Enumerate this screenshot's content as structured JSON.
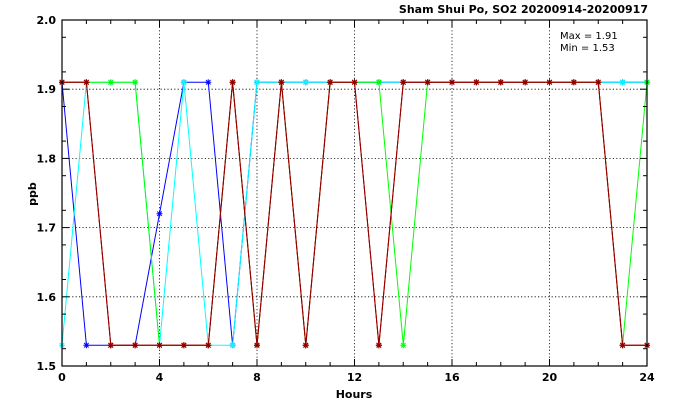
{
  "chart_data": {
    "type": "line",
    "title": "Sham Shui Po, SO2 20200914-20200917",
    "xlabel": "Hours",
    "ylabel": "ppb",
    "xlim": [
      0,
      24
    ],
    "ylim": [
      1.5,
      2.0
    ],
    "x_ticks": [
      "0",
      "4",
      "8",
      "12",
      "16",
      "20",
      "24"
    ],
    "y_ticks": [
      "1.5",
      "1.6",
      "1.7",
      "1.8",
      "1.9",
      "2.0"
    ],
    "grid": true,
    "stats": {
      "max_label": "Max = 1.91",
      "min_label": "Min = 1.53"
    },
    "x": [
      0,
      1,
      2,
      3,
      4,
      5,
      6,
      7,
      8,
      9,
      10,
      11,
      12,
      13,
      14,
      15,
      16,
      17,
      18,
      19,
      20,
      21,
      22,
      23,
      24
    ],
    "series": [
      {
        "color": "#0000ff",
        "values": [
          1.91,
          1.53,
          1.53,
          1.53,
          1.72,
          1.91,
          1.91,
          1.53,
          1.91,
          1.91,
          1.91,
          1.91,
          1.91,
          1.91,
          1.91,
          1.91,
          1.91,
          1.91,
          1.91,
          1.91,
          1.91,
          1.91,
          1.91,
          1.91,
          1.91
        ]
      },
      {
        "color": "#00ffff",
        "values": [
          1.53,
          1.91,
          1.91,
          1.91,
          1.53,
          1.91,
          1.53,
          1.53,
          1.91,
          1.91,
          1.91,
          1.91,
          1.91,
          1.91,
          1.91,
          1.91,
          1.91,
          1.91,
          1.91,
          1.91,
          1.91,
          1.91,
          1.91,
          1.91,
          1.91
        ]
      },
      {
        "color": "#00ff00",
        "values": [
          1.91,
          1.91,
          1.91,
          1.91,
          1.53,
          1.53,
          1.53,
          1.91,
          1.53,
          1.91,
          1.53,
          1.91,
          1.91,
          1.91,
          1.53,
          1.91,
          1.91,
          1.91,
          1.91,
          1.91,
          1.91,
          1.91,
          1.91,
          1.53,
          1.91
        ]
      },
      {
        "color": "#c0501e",
        "values": [
          1.91,
          1.91,
          1.53,
          1.53,
          1.53,
          1.53,
          1.53,
          1.91,
          1.53,
          1.91,
          1.53,
          1.91,
          1.91,
          1.53,
          1.91,
          1.91,
          1.91,
          1.91,
          1.91,
          1.91,
          1.91,
          1.91,
          1.91,
          1.53,
          1.53
        ]
      },
      {
        "color": "#ff0000",
        "values": [
          1.91,
          1.91,
          1.53,
          1.53,
          1.53,
          1.53,
          1.53,
          1.91,
          1.53,
          1.91,
          1.53,
          1.91,
          1.91,
          1.53,
          1.91,
          1.91,
          1.91,
          1.91,
          1.91,
          1.91,
          1.91,
          1.91,
          1.91,
          1.53,
          1.53
        ]
      },
      {
        "color": "#8b0000",
        "values": [
          1.91,
          1.91,
          1.53,
          1.53,
          1.53,
          1.53,
          1.53,
          1.91,
          1.53,
          1.91,
          1.53,
          1.91,
          1.91,
          1.53,
          1.91,
          1.91,
          1.91,
          1.91,
          1.91,
          1.91,
          1.91,
          1.91,
          1.91,
          1.53,
          1.53
        ]
      }
    ]
  }
}
